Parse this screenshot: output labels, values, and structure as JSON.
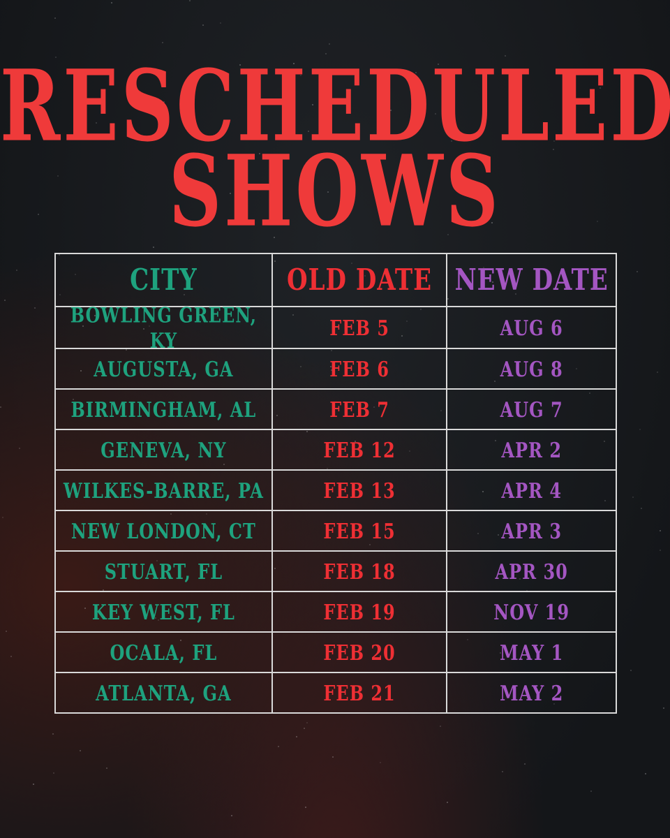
{
  "title": {
    "line1": "RESCHEDULED",
    "line2": "SHOWS"
  },
  "columns": {
    "city": "CITY",
    "old_date": "OLD DATE",
    "new_date": "NEW DATE"
  },
  "rows": [
    {
      "city": "BOWLING GREEN, KY",
      "old": "FEB 5",
      "new": "AUG 6"
    },
    {
      "city": "AUGUSTA, GA",
      "old": "FEB 6",
      "new": "AUG 8"
    },
    {
      "city": "BIRMINGHAM, AL",
      "old": "FEB 7",
      "new": "AUG 7"
    },
    {
      "city": "GENEVA, NY",
      "old": "FEB 12",
      "new": "APR 2"
    },
    {
      "city": "WILKES-BARRE, PA",
      "old": "FEB 13",
      "new": "APR 4"
    },
    {
      "city": "NEW LONDON, CT",
      "old": "FEB 15",
      "new": "APR 3"
    },
    {
      "city": "STUART, FL",
      "old": "FEB 18",
      "new": "APR 30"
    },
    {
      "city": "KEY WEST, FL",
      "old": "FEB 19",
      "new": "NOV 19"
    },
    {
      "city": "OCALA, FL",
      "old": "FEB 20",
      "new": "MAY 1"
    },
    {
      "city": "ATLANTA, GA",
      "old": "FEB 21",
      "new": "MAY 2"
    }
  ],
  "colors": {
    "title": "#ef3a3a",
    "city": "#1ea27e",
    "old_date": "#ee2f34",
    "new_date": "#a456c2",
    "grid": "#d9d9d9"
  }
}
